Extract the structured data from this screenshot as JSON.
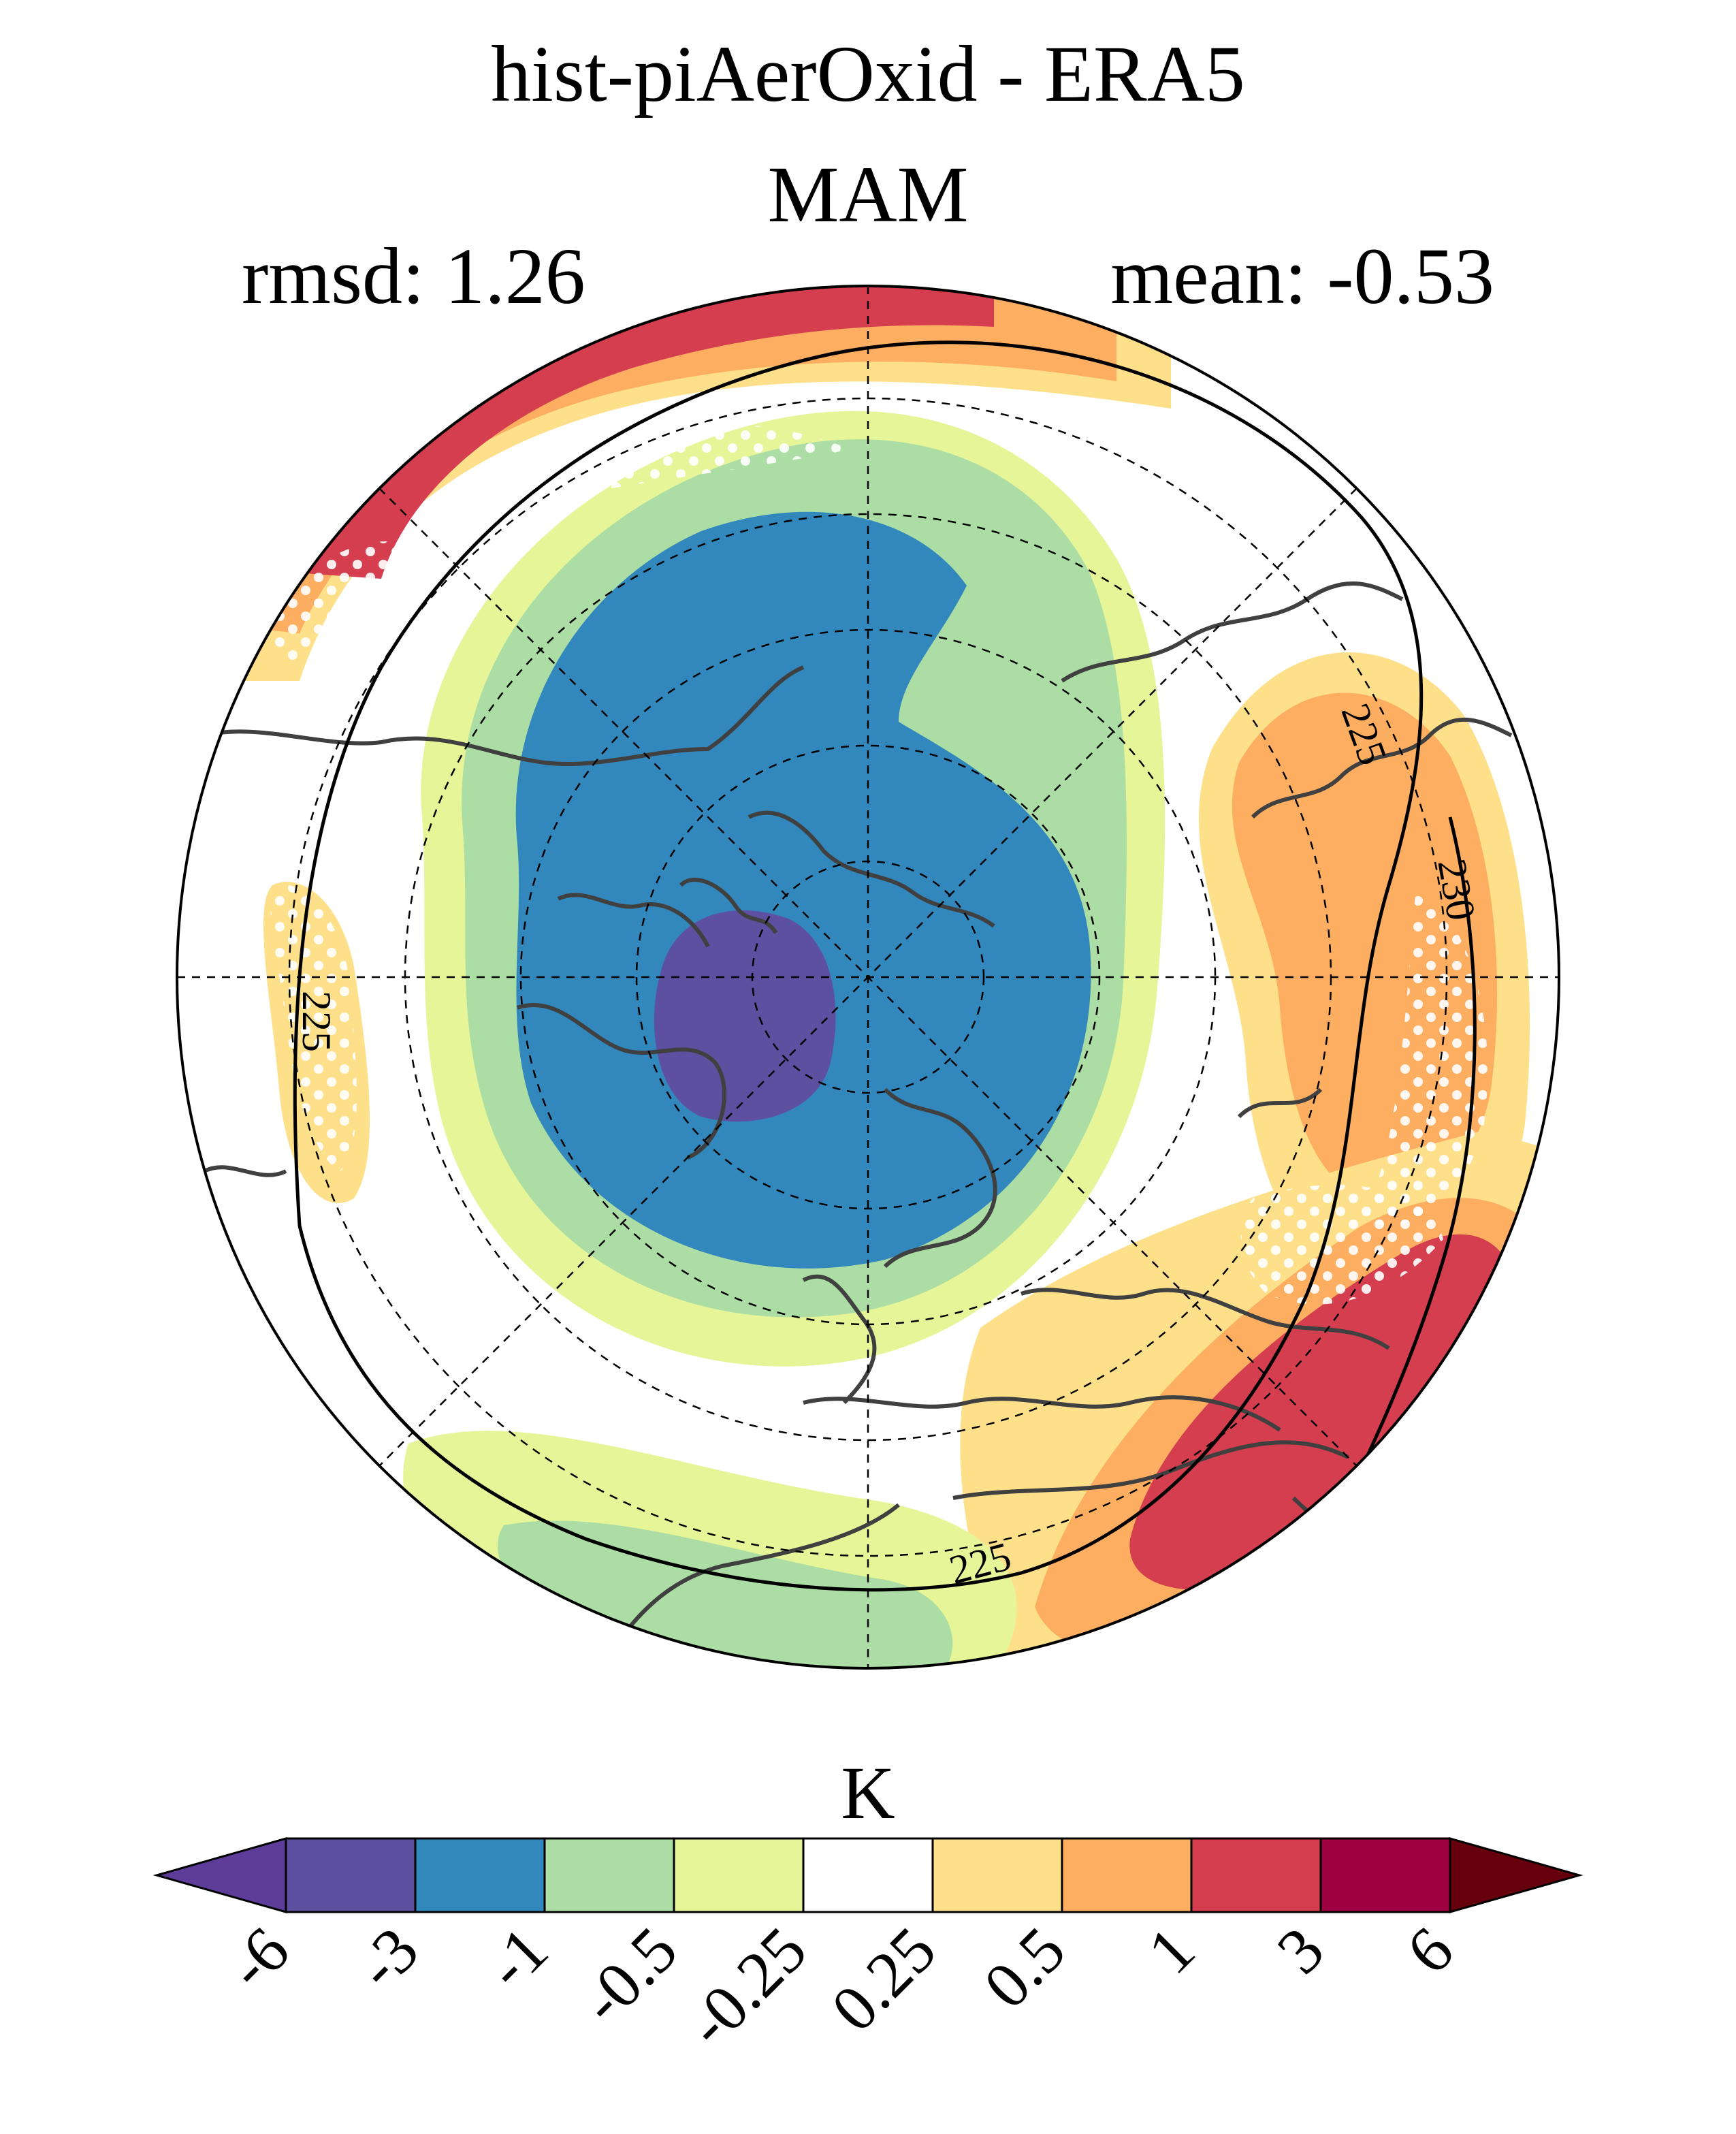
{
  "title": "hist-piAerOxid - ERA5",
  "season": "MAM",
  "rmsd_text": "rmsd: 1.26",
  "mean_text": "mean: -0.53",
  "contour_labels": [
    "225",
    "225",
    "230",
    "225"
  ],
  "colorbar": {
    "unit": "K",
    "tick_labels": [
      "-6",
      "-3",
      "-1",
      "-0.5",
      "-0.25",
      "0.25",
      "0.5",
      "1",
      "3",
      "6"
    ],
    "colors": [
      "#5e3c99",
      "#5e50a1",
      "#3288bd",
      "#abdda4",
      "#e6f598",
      "#ffffff",
      "#fee08b",
      "#fdae61",
      "#d53e4f",
      "#9e0142",
      "#67000d"
    ]
  },
  "colors": {
    "coast": "#404040",
    "grid": "#000000"
  }
}
